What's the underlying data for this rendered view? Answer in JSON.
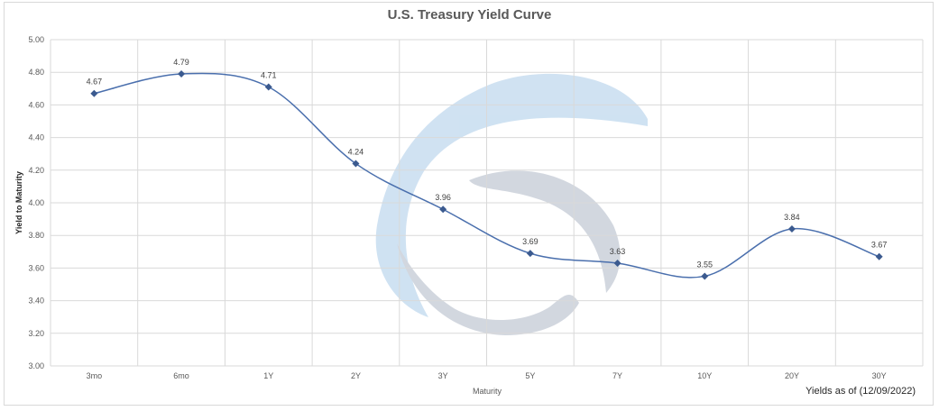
{
  "chart_data": {
    "type": "line",
    "title": "U.S. Treasury Yield Curve",
    "xlabel": "Maturity",
    "ylabel": "Yield to Maturity",
    "footnote": "Yields as of (12/09/2022)",
    "categories": [
      "3mo",
      "6mo",
      "1Y",
      "2Y",
      "3Y",
      "5Y",
      "7Y",
      "10Y",
      "20Y",
      "30Y"
    ],
    "values": [
      4.67,
      4.79,
      4.71,
      4.24,
      3.96,
      3.69,
      3.63,
      3.55,
      3.84,
      3.67
    ],
    "data_labels": [
      "4.67",
      "4.79",
      "4.71",
      "4.24",
      "3.96",
      "3.69",
      "3.63",
      "3.55",
      "3.84",
      "3.67"
    ],
    "ylim": [
      3.0,
      5.0
    ],
    "yticks": [
      "3.00",
      "3.20",
      "3.40",
      "3.60",
      "3.80",
      "4.00",
      "4.20",
      "4.40",
      "4.60",
      "4.80",
      "5.00"
    ],
    "grid": true,
    "line_color": "#4a6fad",
    "marker_color": "#3b5a8f",
    "smooth": true
  }
}
